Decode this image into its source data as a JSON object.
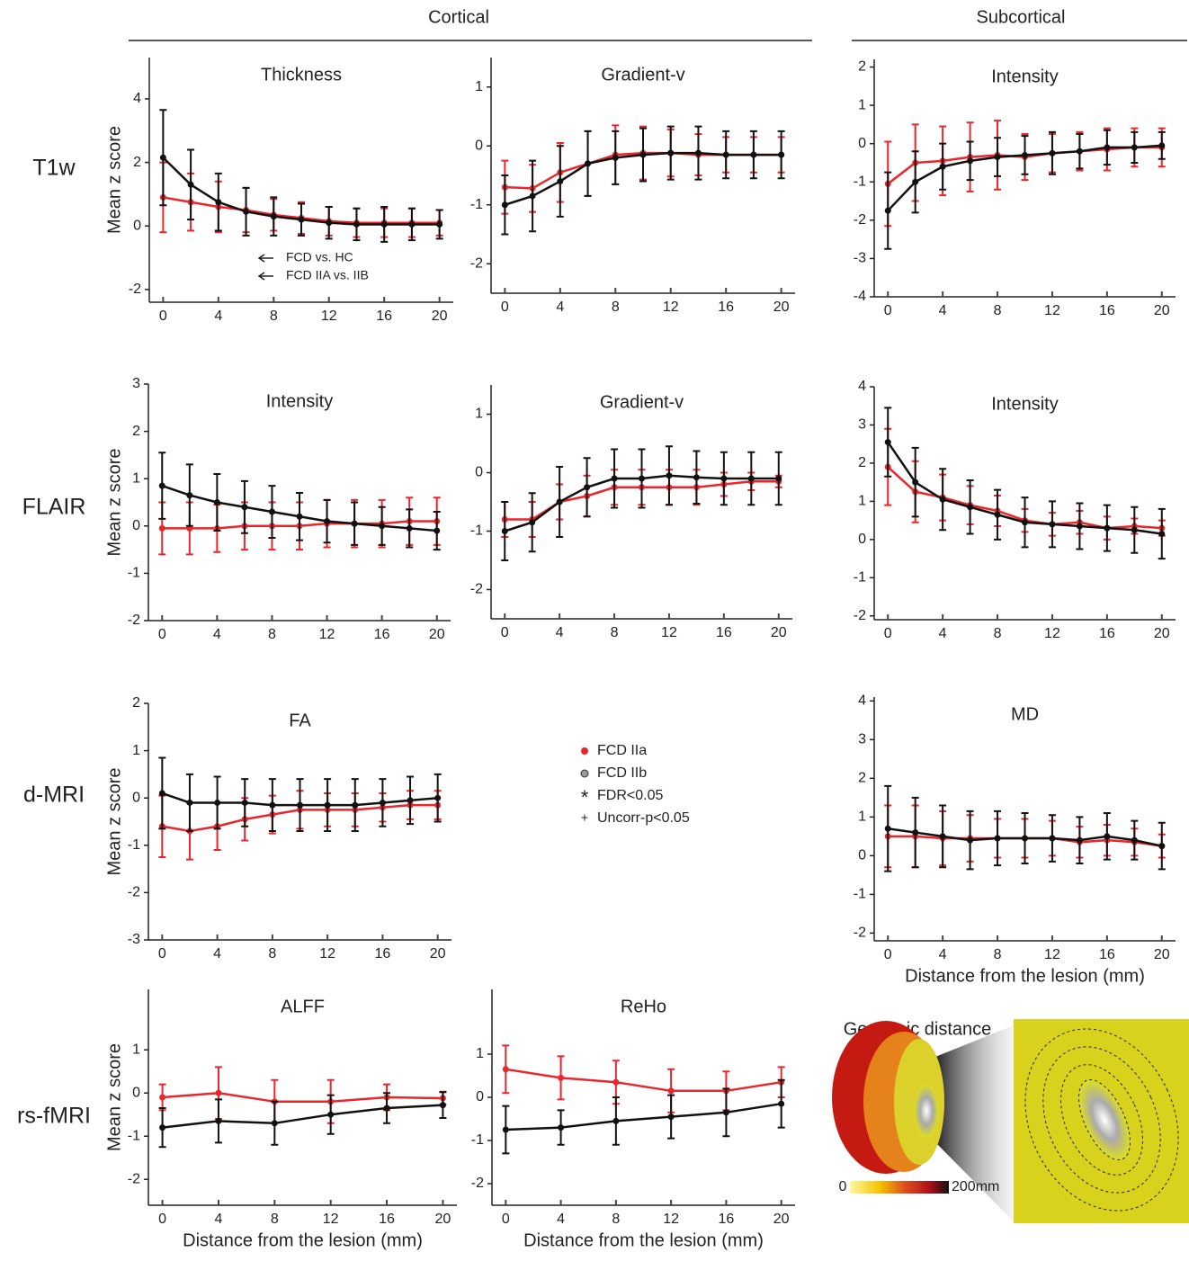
{
  "headers": {
    "cortical": "Cortical",
    "subcortical": "Subcortical"
  },
  "rows": [
    "T1w",
    "FLAIR",
    "d-MRI",
    "rs-fMRI"
  ],
  "legend": [
    "FDR<0.05",
    "Uncorr-p<0.05"
  ],
  "geodesic": {
    "title": "Geodesic distance",
    "min": "0",
    "max": "200mm"
  },
  "chart_data": [
    {
      "type": "line",
      "title": "Thickness",
      "y_label": "Mean z score",
      "x": [
        0,
        2,
        4,
        6,
        8,
        10,
        12,
        14,
        16,
        18,
        20
      ],
      "xlim": [
        -1,
        21
      ],
      "xticks": [
        0,
        4,
        8,
        12,
        16,
        20
      ],
      "ylim": [
        -2.4,
        5.3
      ],
      "yticks": [
        -2,
        0,
        2,
        4
      ],
      "annotations": [
        "FCD vs. HC",
        "FCD IIA vs. IIB"
      ],
      "series": [
        {
          "name": "FCD IIa",
          "color": "#e8262b",
          "values": [
            0.9,
            0.75,
            0.6,
            0.5,
            0.35,
            0.25,
            0.15,
            0.1,
            0.1,
            0.1,
            0.1
          ],
          "errors": [
            1.1,
            0.9,
            0.8,
            0.7,
            0.5,
            0.5,
            0.45,
            0.45,
            0.45,
            0.45,
            0.4
          ]
        },
        {
          "name": "FCD IIb",
          "color": "#111111",
          "values": [
            2.15,
            1.3,
            0.75,
            0.45,
            0.3,
            0.2,
            0.1,
            0.05,
            0.05,
            0.05,
            0.05
          ],
          "errors": [
            1.5,
            1.1,
            0.9,
            0.75,
            0.6,
            0.5,
            0.5,
            0.5,
            0.55,
            0.5,
            0.45
          ]
        }
      ]
    },
    {
      "type": "line",
      "title": "Gradient-v",
      "x": [
        0,
        2,
        4,
        6,
        8,
        10,
        12,
        14,
        16,
        18,
        20
      ],
      "xlim": [
        -1,
        21
      ],
      "xticks": [
        0,
        4,
        8,
        12,
        16,
        20
      ],
      "ylim": [
        -2.5,
        1.5
      ],
      "yticks": [
        -2,
        -1,
        0,
        1
      ],
      "series": [
        {
          "name": "FCD IIa",
          "color": "#e8262b",
          "values": [
            -0.7,
            -0.72,
            -0.45,
            -0.3,
            -0.15,
            -0.12,
            -0.12,
            -0.15,
            -0.15,
            -0.15,
            -0.15
          ],
          "errors": [
            0.45,
            0.4,
            0.5,
            0.55,
            0.5,
            0.45,
            0.4,
            0.35,
            0.3,
            0.3,
            0.3
          ]
        },
        {
          "name": "FCD IIb",
          "color": "#111111",
          "values": [
            -1.0,
            -0.85,
            -0.6,
            -0.3,
            -0.2,
            -0.15,
            -0.12,
            -0.12,
            -0.15,
            -0.15,
            -0.15
          ],
          "errors": [
            0.5,
            0.6,
            0.6,
            0.55,
            0.45,
            0.45,
            0.45,
            0.45,
            0.4,
            0.4,
            0.4
          ]
        }
      ]
    },
    {
      "type": "line",
      "title": "Intensity",
      "x": [
        0,
        2,
        4,
        6,
        8,
        10,
        12,
        14,
        16,
        18,
        20
      ],
      "xlim": [
        -1,
        21
      ],
      "xticks": [
        0,
        4,
        8,
        12,
        16,
        20
      ],
      "ylim": [
        -4,
        2.2
      ],
      "yticks": [
        -4,
        -3,
        -2,
        -1,
        0,
        1,
        2
      ],
      "series": [
        {
          "name": "FCD IIa",
          "color": "#e8262b",
          "values": [
            -1.05,
            -0.5,
            -0.45,
            -0.35,
            -0.3,
            -0.35,
            -0.25,
            -0.2,
            -0.15,
            -0.1,
            -0.1
          ],
          "errors": [
            1.1,
            1.0,
            0.9,
            0.9,
            0.9,
            0.6,
            0.5,
            0.5,
            0.55,
            0.5,
            0.5
          ]
        },
        {
          "name": "FCD IIb",
          "color": "#111111",
          "values": [
            -1.75,
            -1.0,
            -0.6,
            -0.45,
            -0.35,
            -0.3,
            -0.25,
            -0.2,
            -0.1,
            -0.1,
            -0.05
          ],
          "errors": [
            1.0,
            0.8,
            0.6,
            0.5,
            0.5,
            0.5,
            0.55,
            0.45,
            0.45,
            0.4,
            0.35
          ]
        }
      ]
    },
    {
      "type": "line",
      "title": "Intensity",
      "y_label": "Mean z score",
      "x": [
        0,
        2,
        4,
        6,
        8,
        10,
        12,
        14,
        16,
        18,
        20
      ],
      "xlim": [
        -1,
        21
      ],
      "xticks": [
        0,
        4,
        8,
        12,
        16,
        20
      ],
      "ylim": [
        -2,
        3
      ],
      "yticks": [
        -2,
        -1,
        0,
        1,
        2,
        3
      ],
      "series": [
        {
          "name": "FCD IIa",
          "color": "#e8262b",
          "values": [
            -0.05,
            -0.05,
            -0.05,
            0.0,
            0.0,
            0.0,
            0.05,
            0.05,
            0.05,
            0.1,
            0.1
          ],
          "errors": [
            0.55,
            0.55,
            0.5,
            0.5,
            0.5,
            0.5,
            0.5,
            0.5,
            0.5,
            0.5,
            0.5
          ]
        },
        {
          "name": "FCD IIb",
          "color": "#111111",
          "values": [
            0.85,
            0.65,
            0.5,
            0.4,
            0.3,
            0.2,
            0.1,
            0.05,
            0.0,
            -0.05,
            -0.1
          ],
          "errors": [
            0.7,
            0.65,
            0.6,
            0.55,
            0.55,
            0.5,
            0.45,
            0.45,
            0.4,
            0.4,
            0.4
          ]
        }
      ]
    },
    {
      "type": "line",
      "title": "Gradient-v",
      "x": [
        0,
        2,
        4,
        6,
        8,
        10,
        12,
        14,
        16,
        18,
        20
      ],
      "xlim": [
        -1,
        21
      ],
      "xticks": [
        0,
        4,
        8,
        12,
        16,
        20
      ],
      "ylim": [
        -2.5,
        1.5
      ],
      "yticks": [
        -2,
        -1,
        0,
        1
      ],
      "series": [
        {
          "name": "FCD IIa",
          "color": "#e8262b",
          "values": [
            -0.8,
            -0.8,
            -0.5,
            -0.4,
            -0.25,
            -0.25,
            -0.25,
            -0.25,
            -0.2,
            -0.15,
            -0.15
          ],
          "errors": [
            0.3,
            0.3,
            0.3,
            0.35,
            0.3,
            0.3,
            0.3,
            0.3,
            0.2,
            0.15,
            0.1
          ]
        },
        {
          "name": "FCD IIb",
          "color": "#111111",
          "values": [
            -1.0,
            -0.85,
            -0.5,
            -0.25,
            -0.1,
            -0.1,
            -0.05,
            -0.08,
            -0.1,
            -0.1,
            -0.1
          ],
          "errors": [
            0.5,
            0.5,
            0.6,
            0.5,
            0.5,
            0.5,
            0.5,
            0.45,
            0.45,
            0.45,
            0.45
          ]
        }
      ]
    },
    {
      "type": "line",
      "title": "Intensity",
      "x": [
        0,
        2,
        4,
        6,
        8,
        10,
        12,
        14,
        16,
        18,
        20
      ],
      "xlim": [
        -1,
        21
      ],
      "xticks": [
        0,
        4,
        8,
        12,
        16,
        20
      ],
      "ylim": [
        -2.1,
        4
      ],
      "yticks": [
        -2,
        -1,
        0,
        1,
        2,
        3,
        4
      ],
      "series": [
        {
          "name": "FCD IIa",
          "color": "#e8262b",
          "values": [
            1.9,
            1.25,
            1.1,
            0.9,
            0.75,
            0.5,
            0.4,
            0.45,
            0.3,
            0.35,
            0.3
          ],
          "errors": [
            1.0,
            0.8,
            0.6,
            0.5,
            0.4,
            0.3,
            0.3,
            0.3,
            0.3,
            0.2,
            0.2
          ]
        },
        {
          "name": "FCD IIb",
          "color": "#111111",
          "values": [
            2.55,
            1.5,
            1.05,
            0.85,
            0.65,
            0.45,
            0.4,
            0.35,
            0.3,
            0.25,
            0.15
          ],
          "errors": [
            0.9,
            0.9,
            0.8,
            0.7,
            0.65,
            0.65,
            0.6,
            0.6,
            0.6,
            0.6,
            0.65
          ]
        }
      ]
    },
    {
      "type": "line",
      "title": "FA",
      "y_label": "Mean z score",
      "x": [
        0,
        2,
        4,
        6,
        8,
        10,
        12,
        14,
        16,
        18,
        20
      ],
      "xlim": [
        -1,
        21
      ],
      "xticks": [
        0,
        4,
        8,
        12,
        16,
        20
      ],
      "ylim": [
        -3,
        2
      ],
      "yticks": [
        -3,
        -2,
        -1,
        0,
        1,
        2
      ],
      "series": [
        {
          "name": "FCD IIa",
          "color": "#e8262b",
          "values": [
            -0.6,
            -0.7,
            -0.6,
            -0.45,
            -0.35,
            -0.25,
            -0.25,
            -0.25,
            -0.2,
            -0.15,
            -0.15
          ],
          "errors": [
            0.65,
            0.6,
            0.5,
            0.45,
            0.4,
            0.4,
            0.35,
            0.35,
            0.3,
            0.3,
            0.3
          ]
        },
        {
          "name": "FCD IIb",
          "color": "#111111",
          "values": [
            0.1,
            -0.1,
            -0.1,
            -0.1,
            -0.15,
            -0.15,
            -0.15,
            -0.15,
            -0.1,
            -0.05,
            0.0
          ],
          "errors": [
            0.75,
            0.6,
            0.55,
            0.5,
            0.55,
            0.55,
            0.55,
            0.55,
            0.5,
            0.5,
            0.5
          ]
        }
      ]
    },
    {
      "type": "line",
      "title": "MD",
      "x_label": "Distance from the lesion (mm)",
      "x": [
        0,
        2,
        4,
        6,
        8,
        10,
        12,
        14,
        16,
        18,
        20
      ],
      "xlim": [
        -1,
        21
      ],
      "xticks": [
        0,
        4,
        8,
        12,
        16,
        20
      ],
      "ylim": [
        -2.2,
        4.1
      ],
      "yticks": [
        -2,
        -1,
        0,
        1,
        2,
        3,
        4
      ],
      "series": [
        {
          "name": "FCD IIa",
          "color": "#e8262b",
          "values": [
            0.5,
            0.5,
            0.45,
            0.45,
            0.45,
            0.45,
            0.45,
            0.35,
            0.4,
            0.35,
            0.25
          ],
          "errors": [
            0.8,
            0.8,
            0.7,
            0.6,
            0.5,
            0.5,
            0.45,
            0.4,
            0.4,
            0.35,
            0.3
          ]
        },
        {
          "name": "FCD IIb",
          "color": "#111111",
          "values": [
            0.7,
            0.6,
            0.5,
            0.4,
            0.45,
            0.45,
            0.45,
            0.4,
            0.5,
            0.4,
            0.25
          ],
          "errors": [
            1.1,
            0.9,
            0.8,
            0.75,
            0.7,
            0.65,
            0.6,
            0.6,
            0.6,
            0.5,
            0.6
          ]
        }
      ]
    },
    {
      "type": "line",
      "title": "ALFF",
      "y_label": "Mean z score",
      "x_label": "Distance from the lesion (mm)",
      "x": [
        0,
        4,
        8,
        12,
        16,
        20
      ],
      "xlim": [
        -1,
        21
      ],
      "xticks": [
        0,
        4,
        8,
        12,
        16,
        20
      ],
      "ylim": [
        -2.6,
        2.4
      ],
      "yticks": [
        -2,
        -1,
        0,
        1
      ],
      "series": [
        {
          "name": "FCD IIa",
          "color": "#e8262b",
          "values": [
            -0.1,
            0.0,
            -0.2,
            -0.2,
            -0.1,
            -0.12
          ],
          "errors": [
            0.3,
            0.6,
            0.5,
            0.5,
            0.3,
            0.15
          ]
        },
        {
          "name": "FCD IIb",
          "color": "#111111",
          "values": [
            -0.8,
            -0.65,
            -0.7,
            -0.5,
            -0.35,
            -0.28
          ],
          "errors": [
            0.45,
            0.5,
            0.5,
            0.45,
            0.35,
            0.3
          ]
        }
      ]
    },
    {
      "type": "line",
      "title": "ReHo",
      "x_label": "Distance from the lesion (mm)",
      "x": [
        0,
        4,
        8,
        12,
        16,
        20
      ],
      "xlim": [
        -1,
        21
      ],
      "xticks": [
        0,
        4,
        8,
        12,
        16,
        20
      ],
      "ylim": [
        -2.5,
        2.5
      ],
      "yticks": [
        -2,
        -1,
        0,
        1
      ],
      "series": [
        {
          "name": "FCD IIa",
          "color": "#e8262b",
          "values": [
            0.65,
            0.45,
            0.35,
            0.15,
            0.15,
            0.35
          ],
          "errors": [
            0.55,
            0.5,
            0.5,
            0.5,
            0.45,
            0.35
          ]
        },
        {
          "name": "FCD IIb",
          "color": "#111111",
          "values": [
            -0.75,
            -0.7,
            -0.55,
            -0.45,
            -0.35,
            -0.15
          ],
          "errors": [
            0.55,
            0.4,
            0.55,
            0.5,
            0.55,
            0.55
          ]
        }
      ]
    }
  ]
}
